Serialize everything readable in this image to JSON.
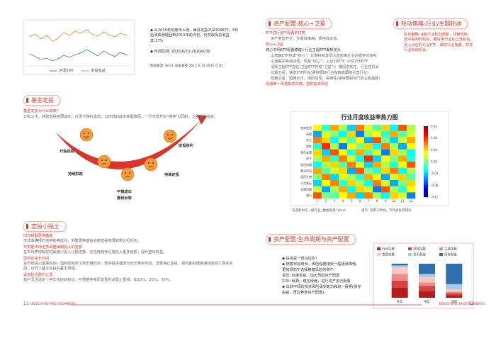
{
  "left": {
    "figure": {
      "legend": [
        "沪深300",
        "定投收益"
      ]
    },
    "bullets": [
      "◆ 从2015年的熊市入场，每月定投沪深300ETF，5年后收获涨幅回到2015年的点位，仍然取得总收益率:17%",
      "◆ 时间区间: 2015/6/15-2020/6/30"
    ],
    "source": "数据来源: Wind, 国泰君安 2015.6.15-2020.6.30",
    "dingtou": {
      "title": "基金定投",
      "question": "基金定投为什么有效?",
      "text": "分批入市，获取定投摊薄成本，市场下跌抗波动，以较低的成本获取筹码，一旦市场开始“微笑”(反弹)，立即获取收益。",
      "steps": [
        "开始定投",
        "持续扣款",
        "平摊成本",
        "静待反转",
        "持续定投",
        "定投获利"
      ]
    },
    "tips": {
      "title": "定投小贴士",
      "items": [
        {
          "heading": "切勿频繁更换基金",
          "text": "无法准确择时买卖的高低点，频繁更换基金会使定投摊薄效果大打折扣。"
        },
        {
          "heading": "可根据市场走势调整每期投入的金额",
          "text": "在市场表现较好时适度少投入小额定额，在估值较低位置投入更多金额，提升整体收益。"
        },
        {
          "heading": "坚持定投长时间",
          "text": "在市场进入震荡时刻，坚持定投到了熊市最低点，很多投资者因为无法承受亏损，选择停止定投，把可能的微笑曲线变成了真实亏损，违背了基本定投的基本原理。"
        },
        {
          "heading": "设定恰当盈利止盈",
          "text": "找户灵活设定一些年化的目标比，可根据参考历史盈利设置止盈线，如10%、20%、30%。"
        }
      ]
    },
    "footer": {
      "page": "11",
      "label": "BROCHURE PAGE NUMBERS"
    }
  },
  "right": {
    "core": {
      "title": "资产配置:核心+卫星",
      "lines": [
        {
          "text": "ETF进行资产配置的优势",
          "style": "red"
        },
        {
          "text": "资产类型齐全，交易效率高，费用成本低。",
          "style": "grey"
        },
        {
          "text": "核心+卫星",
          "style": "red"
        },
        {
          "text": "核心市场ETF配置稳健+行业主题ETF聚焦龙头",
          "style": "dark"
        },
        {
          "text": "山宽基ETF构成“核心”：长期持有享受大盘蓝筹企业的稳定收益和",
          "style": "grey"
        },
        {
          "text": "小盘股冲高域业绩，风格“核心”：上证50ETF, 沪深300ETF",
          "style": "grey"
        },
        {
          "text": "活跃主题ETF担任(卫星ETF构成“卫星”)：捕捉进攻性，行业性机会",
          "style": "grey"
        },
        {
          "text": "长期卫星：获取ETF所在(通常跟踪行业指数或跟踪主营行业)",
          "style": "grey"
        },
        {
          "text": "短期卫星：短期炒作、博阶段性、高弹性(通常跟踪热门的主题指数)",
          "style": "grey"
        },
        {
          "text": "克服单一风格投资风格，控制投资风险",
          "style": "red"
        }
      ]
    },
    "rotation": {
      "title": "轮动策略:行业/主题轮动",
      "text": "轮动策略: A股行业轮动频繁，切换较快，选中股利时机先，看好某行业的上涨机会，买入对应的行业ETF，跟踪行业指数，抓住行业轮动机会。"
    },
    "heatmap": {
      "title": "行业月度收益率热力图",
      "rows": [
        "农林牧渔",
        "采掘",
        "化工",
        "钢铁",
        "有色金属",
        "电子",
        "家用电器",
        "食品饮料",
        "医药生物",
        "公用事业",
        "交通运输",
        "银行"
      ],
      "columns": [
        "1",
        "2",
        "3",
        "4",
        "5",
        "6",
        "7",
        "8",
        "9",
        "10",
        "11",
        "12"
      ],
      "values": [
        [
          0.03,
          -0.02,
          0.05,
          0.01,
          -0.04,
          0.06,
          0.02,
          -0.01,
          0.04,
          -0.03,
          0.07,
          0.01
        ],
        [
          -0.05,
          0.02,
          0.0,
          -0.03,
          0.04,
          -0.06,
          0.01,
          0.03,
          -0.02,
          0.05,
          -0.01,
          0.02
        ],
        [
          0.06,
          0.04,
          -0.03,
          0.02,
          -0.01,
          0.03,
          -0.05,
          0.07,
          0.0,
          -0.04,
          0.02,
          0.05
        ],
        [
          -0.02,
          0.08,
          0.01,
          -0.06,
          0.03,
          0.0,
          0.04,
          -0.03,
          0.06,
          0.01,
          -0.05,
          0.03
        ],
        [
          0.04,
          -0.04,
          0.07,
          0.03,
          -0.02,
          0.05,
          -0.01,
          0.02,
          -0.06,
          0.04,
          0.01,
          -0.03
        ],
        [
          0.01,
          0.05,
          -0.02,
          0.06,
          0.02,
          -0.03,
          0.08,
          -0.04,
          0.03,
          0.0,
          0.05,
          -0.02
        ],
        [
          -0.03,
          0.01,
          0.04,
          -0.01,
          0.06,
          0.02,
          -0.04,
          0.05,
          0.01,
          -0.02,
          0.03,
          0.07
        ],
        [
          0.05,
          -0.01,
          0.02,
          0.04,
          -0.05,
          0.07,
          0.0,
          -0.02,
          0.04,
          0.06,
          -0.03,
          0.01
        ],
        [
          0.0,
          0.06,
          -0.04,
          0.02,
          0.01,
          -0.02,
          0.05,
          0.03,
          -0.05,
          0.02,
          0.04,
          -0.01
        ],
        [
          -0.04,
          0.03,
          0.06,
          -0.02,
          0.04,
          0.01,
          -0.03,
          0.06,
          0.02,
          -0.05,
          0.0,
          0.04
        ],
        [
          0.02,
          -0.05,
          0.01,
          0.05,
          -0.03,
          0.04,
          0.02,
          -0.06,
          0.07,
          0.01,
          -0.02,
          0.03
        ],
        [
          0.07,
          0.0,
          -0.01,
          0.03,
          0.05,
          -0.04,
          0.06,
          0.01,
          -0.03,
          0.04,
          0.02,
          -0.06
        ]
      ],
      "colorbar_lim": [
        -0.12,
        0.12
      ],
      "colorbar_ticks": [
        {
          "value": 0.12,
          "label": "0.12"
        },
        {
          "value": 0.08,
          "label": "0.08"
        },
        {
          "value": 0.04,
          "label": "0.04"
        },
        {
          "value": 0,
          "label": "0.00"
        },
        {
          "value": -0.04,
          "label": "-0.04"
        },
        {
          "value": -0.08,
          "label": "-0.08"
        },
        {
          "value": -0.12,
          "label": "-0.12"
        }
      ],
      "note": "仅选取中信一级行业; 数据来源: Wind",
      "hint": "提示: 仅用于举例，不代表投资建议"
    },
    "lifecycle": {
      "title": "资产配置:生命周期与资产配置",
      "lines": [
        "◆ 投资是一场马拉松!",
        "◆ 随着年龄增长，风险程度接受一般逐渐降低，",
        "更加倾向于选择稳健风险的资产;",
        "青年: 标准定投，加大风险资产配置",
        "中年: 保费，稳定增值，进行资产多元配置",
        "◆ 年龄不同的投资风险承受能力和增一股票(保守",
        "投资，再次养老资产配置)。"
      ]
    },
    "allocation": {
      "type": "bar",
      "stacked": true,
      "categories": [
        "青年",
        "中年",
        "退休"
      ],
      "ylim": [
        0,
        100
      ],
      "series": [
        {
          "name": "行业指数",
          "color": "#b71c1c",
          "values": [
            30,
            20,
            8
          ]
        },
        {
          "name": "风格指数",
          "color": "#d84343",
          "values": [
            20,
            15,
            6
          ]
        },
        {
          "name": "主题指数",
          "color": "#ec8c84",
          "values": [
            20,
            10,
            4
          ]
        },
        {
          "name": "宽基指数",
          "color": "#f6c9c4",
          "values": [
            20,
            15,
            7
          ]
        },
        {
          "name": "货币基金",
          "color": "#a9c8e6",
          "values": [
            5,
            10,
            15
          ]
        },
        {
          "name": "债券基金",
          "color": "#2f6fb0",
          "values": [
            5,
            30,
            60
          ]
        }
      ]
    },
    "footer": {
      "page": "12",
      "label": "BROCHURE PAGE NUMBERS"
    }
  }
}
